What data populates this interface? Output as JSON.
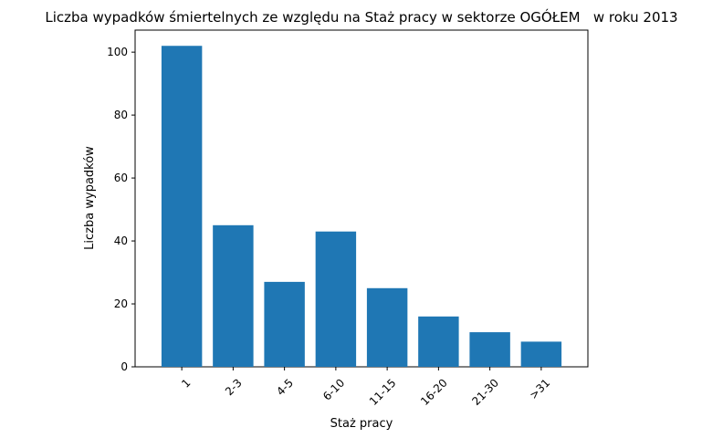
{
  "chart_data": {
    "type": "bar",
    "title": "Liczba wypadków śmiertelnych ze względu na Staż pracy w sektorze OGÓŁEM   w roku 2013",
    "xlabel": "Staż pracy",
    "ylabel": "Liczba wypadków",
    "categories": [
      "1",
      "2-3",
      "4-5",
      "6-10",
      "11-15",
      "16-20",
      "21-30",
      ">31"
    ],
    "values": [
      102,
      45,
      27,
      43,
      25,
      16,
      11,
      8
    ],
    "ylim": [
      0,
      107
    ],
    "yticks": [
      0,
      20,
      40,
      60,
      80,
      100
    ],
    "bar_color": "#1f77b4",
    "grid": false,
    "legend": "none"
  }
}
